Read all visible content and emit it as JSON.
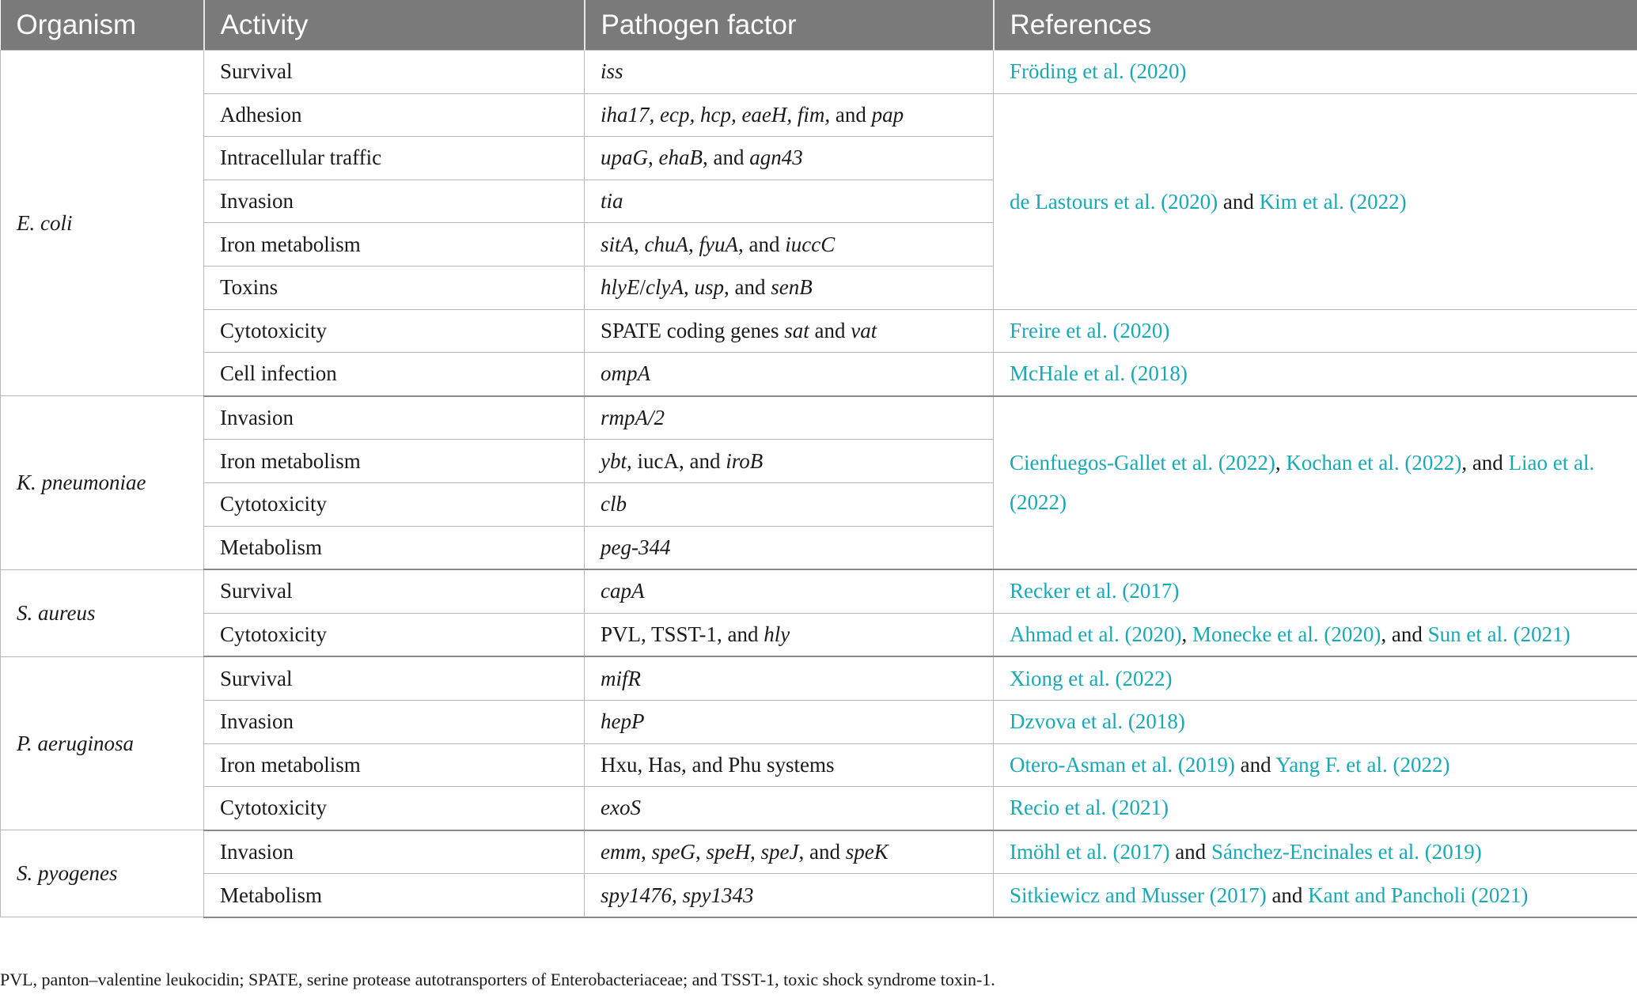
{
  "table": {
    "headers": [
      "Organism",
      "Activity",
      "Pathogen factor",
      "References"
    ],
    "groups": [
      {
        "organism": "E. coli",
        "rows": [
          {
            "activity": "Survival",
            "factor": [
              {
                "t": "iss",
                "i": true
              }
            ],
            "refs": [
              {
                "t": "Fröding et al. (2020)",
                "l": true
              }
            ]
          },
          {
            "activity": "Adhesion",
            "factor": [
              {
                "t": "iha17, ecp, hcp, eaeH, fim,",
                "i": true
              },
              {
                "t": " and ",
                "i": false
              },
              {
                "t": "pap",
                "i": true
              }
            ],
            "refs": [
              {
                "t": "de Lastours et al. (2020)",
                "l": true
              },
              {
                "t": " and ",
                "l": false
              },
              {
                "t": "Kim et al. (2022)",
                "l": true
              }
            ],
            "refSpan": 5
          },
          {
            "activity": "Intracellular traffic",
            "factor": [
              {
                "t": "upaG",
                "i": true
              },
              {
                "t": ", ",
                "i": false
              },
              {
                "t": "ehaB",
                "i": true
              },
              {
                "t": ", and ",
                "i": false
              },
              {
                "t": "agn43",
                "i": true
              }
            ]
          },
          {
            "activity": "Invasion",
            "factor": [
              {
                "t": "tia",
                "i": true
              }
            ]
          },
          {
            "activity": "Iron metabolism",
            "factor": [
              {
                "t": "sitA",
                "i": true
              },
              {
                "t": ", ",
                "i": false
              },
              {
                "t": "chuA",
                "i": true
              },
              {
                "t": ", ",
                "i": false
              },
              {
                "t": "fyuA",
                "i": true
              },
              {
                "t": ", and ",
                "i": false
              },
              {
                "t": "iuccC",
                "i": true
              }
            ]
          },
          {
            "activity": "Toxins",
            "factor": [
              {
                "t": "hlyE",
                "i": true
              },
              {
                "t": "/",
                "i": false
              },
              {
                "t": "clyA",
                "i": true
              },
              {
                "t": ", ",
                "i": false
              },
              {
                "t": "usp",
                "i": true
              },
              {
                "t": ", and ",
                "i": false
              },
              {
                "t": "senB",
                "i": true
              }
            ]
          },
          {
            "activity": "Cytotoxicity",
            "factor": [
              {
                "t": "SPATE coding genes ",
                "i": false
              },
              {
                "t": "sat",
                "i": true
              },
              {
                "t": " and ",
                "i": false
              },
              {
                "t": "vat",
                "i": true
              }
            ],
            "refs": [
              {
                "t": "Freire et al. (2020)",
                "l": true
              }
            ]
          },
          {
            "activity": "Cell infection",
            "factor": [
              {
                "t": "ompA",
                "i": true
              }
            ],
            "refs": [
              {
                "t": "McHale et al. (2018)",
                "l": true
              }
            ]
          }
        ]
      },
      {
        "organism": "K. pneumoniae",
        "rows": [
          {
            "activity": "Invasion",
            "factor": [
              {
                "t": "rmpA/2",
                "i": true
              }
            ],
            "refs": [
              {
                "t": "Cienfuegos-Gallet et al. (2022)",
                "l": true
              },
              {
                "t": ", ",
                "l": false
              },
              {
                "t": "Kochan et al. (2022)",
                "l": true
              },
              {
                "t": ", and ",
                "l": false
              },
              {
                "t": "Liao et al. (2022)",
                "l": true
              }
            ],
            "refSpan": 4
          },
          {
            "activity": "Iron metabolism",
            "factor": [
              {
                "t": "ybt,",
                "i": true
              },
              {
                "t": " iucA, and ",
                "i": false
              },
              {
                "t": "iroB",
                "i": true
              }
            ]
          },
          {
            "activity": "Cytotoxicity",
            "factor": [
              {
                "t": "clb",
                "i": true
              }
            ]
          },
          {
            "activity": "Metabolism",
            "factor": [
              {
                "t": "peg-344",
                "i": true
              }
            ]
          }
        ]
      },
      {
        "organism": "S. aureus",
        "rows": [
          {
            "activity": "Survival",
            "factor": [
              {
                "t": "capA",
                "i": true
              }
            ],
            "refs": [
              {
                "t": "Recker et al. (2017)",
                "l": true
              }
            ]
          },
          {
            "activity": "Cytotoxicity",
            "factor": [
              {
                "t": "PVL, TSST-1, and ",
                "i": false
              },
              {
                "t": "hly",
                "i": true
              }
            ],
            "refs": [
              {
                "t": "Ahmad et al. (2020)",
                "l": true
              },
              {
                "t": ", ",
                "l": false
              },
              {
                "t": "Monecke et al. (2020)",
                "l": true
              },
              {
                "t": ", and ",
                "l": false
              },
              {
                "t": "Sun et al. (2021)",
                "l": true
              }
            ]
          }
        ]
      },
      {
        "organism": "P. aeruginosa",
        "rows": [
          {
            "activity": "Survival",
            "factor": [
              {
                "t": "mifR",
                "i": true
              }
            ],
            "refs": [
              {
                "t": "Xiong et al. (2022)",
                "l": true
              }
            ]
          },
          {
            "activity": "Invasion",
            "factor": [
              {
                "t": "hepP",
                "i": true
              }
            ],
            "refs": [
              {
                "t": "Dzvova et al. (2018)",
                "l": true
              }
            ]
          },
          {
            "activity": "Iron metabolism",
            "factor": [
              {
                "t": "Hxu, Has, and Phu systems",
                "i": false
              }
            ],
            "refs": [
              {
                "t": "Otero-Asman et al. (2019)",
                "l": true
              },
              {
                "t": " and ",
                "l": false
              },
              {
                "t": "Yang F. et al. (2022)",
                "l": true
              }
            ]
          },
          {
            "activity": "Cytotoxicity",
            "factor": [
              {
                "t": "exoS",
                "i": true
              }
            ],
            "refs": [
              {
                "t": "Recio et al. (2021)",
                "l": true
              }
            ]
          }
        ]
      },
      {
        "organism": "S. pyogenes",
        "rows": [
          {
            "activity": "Invasion",
            "factor": [
              {
                "t": "emm",
                "i": true
              },
              {
                "t": ", ",
                "i": false
              },
              {
                "t": "speG",
                "i": true
              },
              {
                "t": ", ",
                "i": false
              },
              {
                "t": "speH",
                "i": true
              },
              {
                "t": ", ",
                "i": false
              },
              {
                "t": "speJ",
                "i": true
              },
              {
                "t": ", and ",
                "i": false
              },
              {
                "t": "speK",
                "i": true
              }
            ],
            "refs": [
              {
                "t": "Imöhl et al. (2017)",
                "l": true
              },
              {
                "t": " and ",
                "l": false
              },
              {
                "t": "Sánchez-Encinales et al. (2019)",
                "l": true
              }
            ]
          },
          {
            "activity": "Metabolism",
            "factor": [
              {
                "t": "spy1476",
                "i": true
              },
              {
                "t": ", ",
                "i": false
              },
              {
                "t": "spy1343",
                "i": true
              }
            ],
            "refs": [
              {
                "t": "Sitkiewicz and Musser (2017)",
                "l": true
              },
              {
                "t": " and ",
                "l": false
              },
              {
                "t": "Kant and Pancholi (2021)",
                "l": true
              }
            ]
          }
        ]
      }
    ]
  },
  "footnote": "PVL, panton–valentine leukocidin; SPATE, serine protease autotransporters of Enterobacteriaceae; and TSST-1, toxic shock syndrome toxin-1.",
  "colors": {
    "header_bg": "#7a7a7a",
    "link": "#18a9b5",
    "border": "#b8b8b8"
  }
}
